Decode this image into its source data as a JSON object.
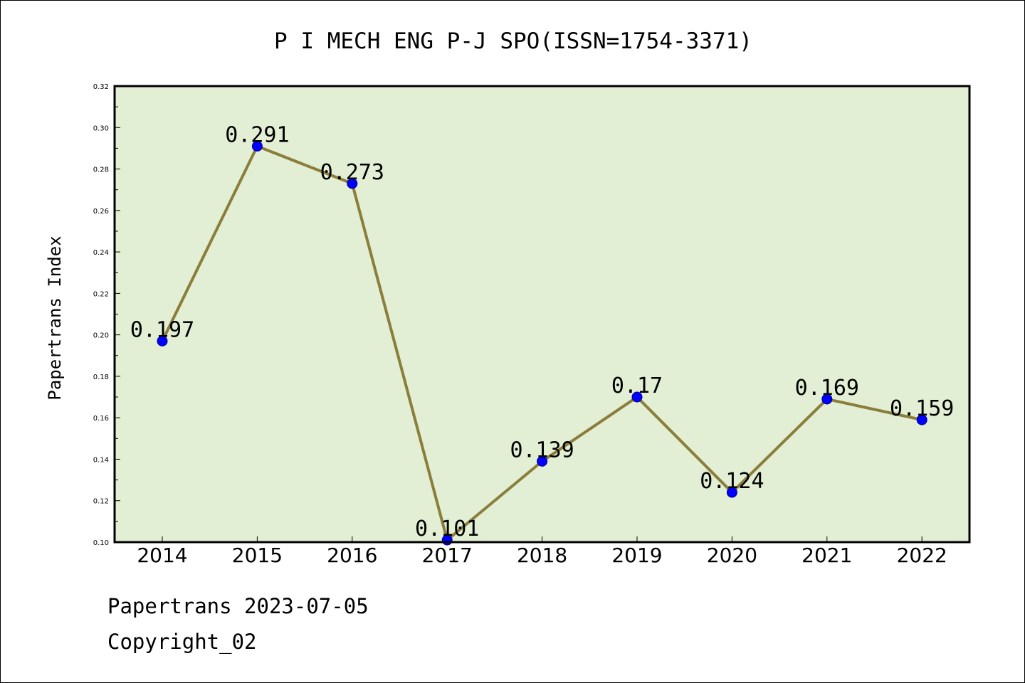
{
  "chart_data": {
    "type": "line",
    "title": "P I MECH ENG P-J SPO(ISSN=1754-3371)",
    "ylabel": "Papertrans Index",
    "xlabel": "",
    "categories": [
      "2014",
      "2015",
      "2016",
      "2017",
      "2018",
      "2019",
      "2020",
      "2021",
      "2022"
    ],
    "series": [
      {
        "values": [
          0.197,
          0.291,
          0.273,
          0.101,
          0.139,
          0.17,
          0.124,
          0.169,
          0.159
        ],
        "data_labels": [
          "0.197",
          "0.291",
          "0.273",
          "0.101",
          "0.139",
          "0.17",
          "0.124",
          "0.169",
          "0.159"
        ]
      }
    ],
    "ylim": [
      0.1,
      0.32
    ],
    "yticks": [
      "0.10",
      "0.12",
      "0.14",
      "0.16",
      "0.18",
      "0.20",
      "0.22",
      "0.24",
      "0.26",
      "0.28",
      "0.30",
      "0.32"
    ],
    "grid": false,
    "colors": {
      "plot_background": "#e2efd4",
      "line": "#8b7d3a",
      "marker": "#0000ff",
      "marker_edge": "#00008b"
    }
  },
  "footer": {
    "line1": "Papertrans 2023-07-05",
    "line2": "Copyright_02"
  }
}
